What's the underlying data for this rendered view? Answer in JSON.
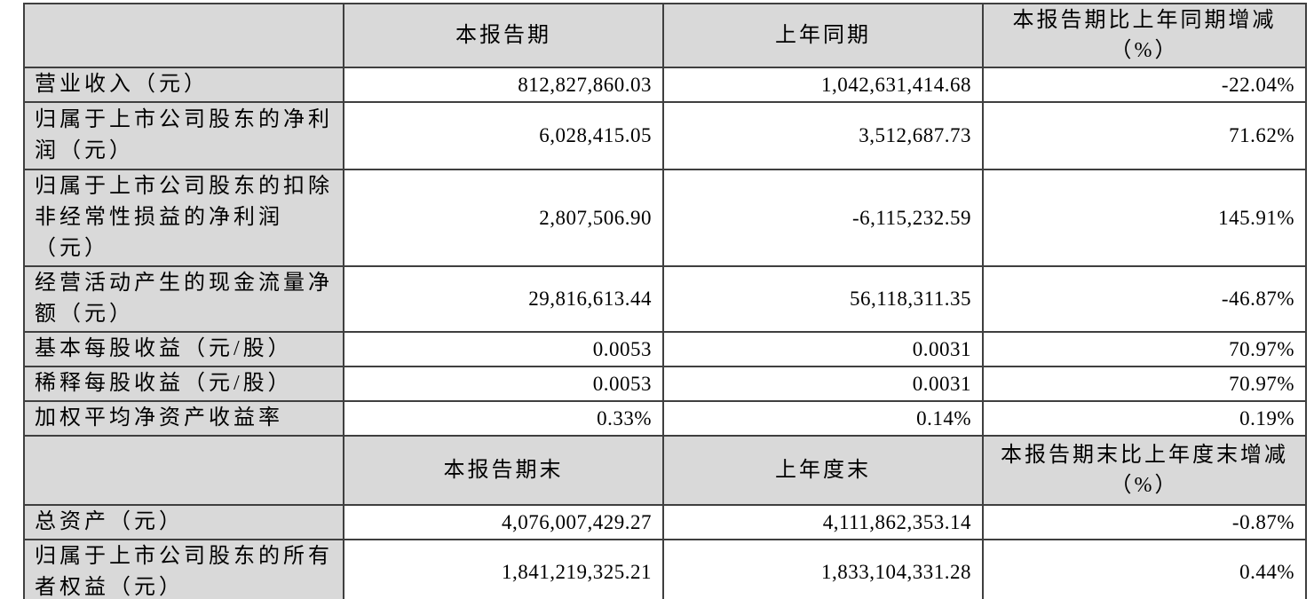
{
  "colors": {
    "page_background": "#ffffff",
    "header_cell_background": "#d9d9d9",
    "label_cell_background": "#d9d9d9",
    "value_cell_background": "#ffffff",
    "border": "#3f3f3f",
    "text": "#000000"
  },
  "table": {
    "sections": [
      {
        "header": {
          "label": "",
          "col_current": "本报告期",
          "col_prior": "上年同期",
          "col_change_line1": "本报告期比上年同期增减",
          "col_change_line2": "（%）"
        },
        "rows": [
          {
            "label": "营业收入（元）",
            "current": "812,827,860.03",
            "prior": "1,042,631,414.68",
            "change": "-22.04%"
          },
          {
            "label": "归属于上市公司股东的净利润（元）",
            "current": "6,028,415.05",
            "prior": "3,512,687.73",
            "change": "71.62%"
          },
          {
            "label": "归属于上市公司股东的扣除非经常性损益的净利润（元）",
            "current": "2,807,506.90",
            "prior": "-6,115,232.59",
            "change": "145.91%"
          },
          {
            "label": "经营活动产生的现金流量净额（元）",
            "current": "29,816,613.44",
            "prior": "56,118,311.35",
            "change": "-46.87%"
          },
          {
            "label": "基本每股收益（元/股）",
            "current": "0.0053",
            "prior": "0.0031",
            "change": "70.97%"
          },
          {
            "label": "稀释每股收益（元/股）",
            "current": "0.0053",
            "prior": "0.0031",
            "change": "70.97%"
          },
          {
            "label": "加权平均净资产收益率",
            "current": "0.33%",
            "prior": "0.14%",
            "change": "0.19%"
          }
        ]
      },
      {
        "header": {
          "label": "",
          "col_current": "本报告期末",
          "col_prior": "上年度末",
          "col_change_line1": "本报告期末比上年度末增减",
          "col_change_line2": "（%）"
        },
        "rows": [
          {
            "label": "总资产（元）",
            "current": "4,076,007,429.27",
            "prior": "4,111,862,353.14",
            "change": "-0.87%"
          },
          {
            "label": "归属于上市公司股东的所有者权益（元）",
            "current": "1,841,219,325.21",
            "prior": "1,833,104,331.28",
            "change": "0.44%"
          }
        ]
      }
    ]
  }
}
